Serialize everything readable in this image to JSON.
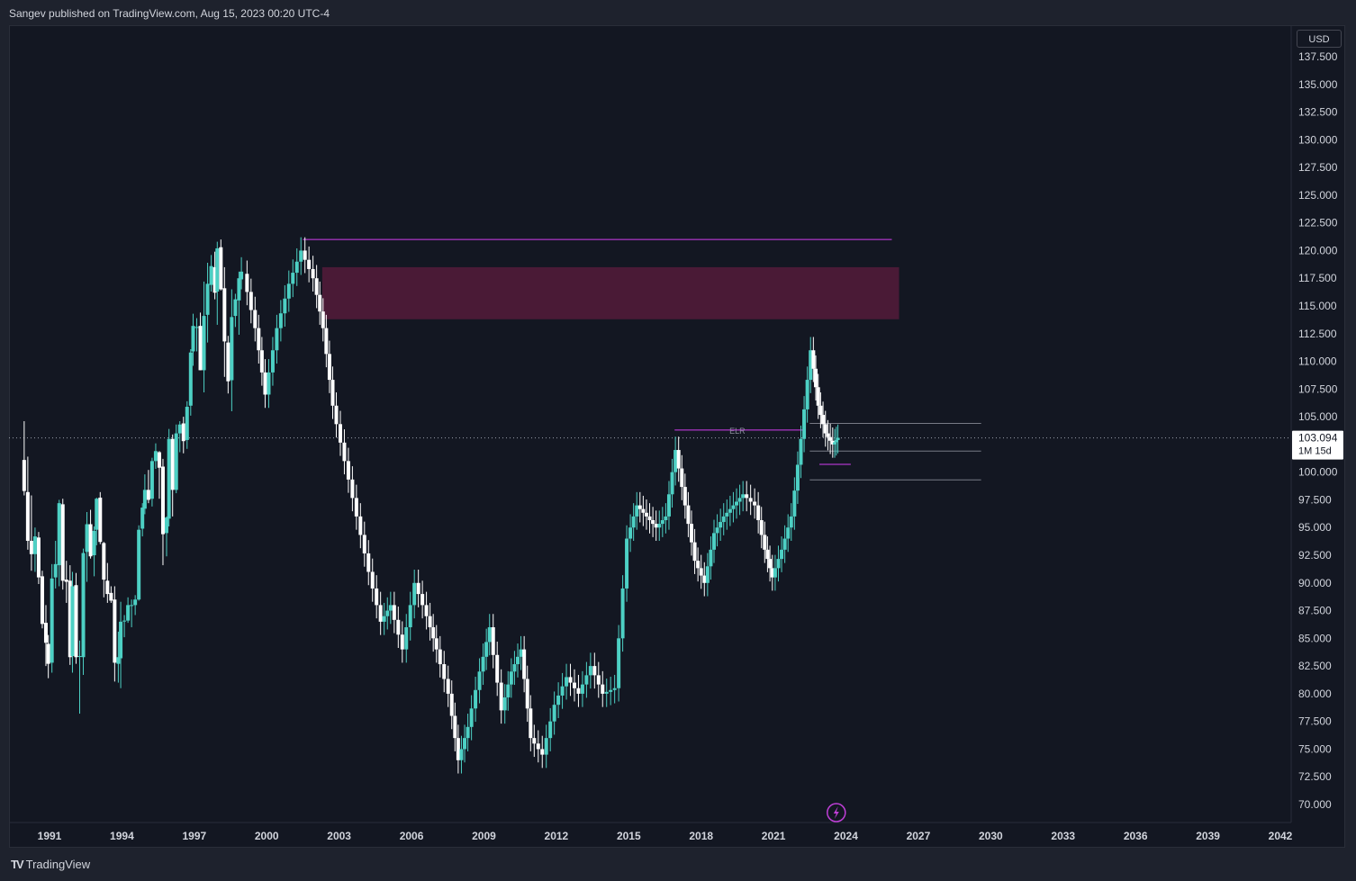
{
  "header": {
    "publisher": "Sangev published on TradingView.com, Aug 15, 2023 00:20 UTC-4"
  },
  "footer": {
    "brand": "TradingView",
    "logo_icon": "tradingview-logo-icon"
  },
  "currency_button": "USD",
  "colors": {
    "up": "#4dd0c4",
    "down": "#ffffff",
    "zone": "#4a1a36",
    "level": "#d23ef0",
    "grid_bg": "#131722"
  },
  "chart_data": {
    "type": "candlestick",
    "interval": "1M 15d",
    "last_price": "103.094",
    "ylim": [
      69.0,
      139.0
    ],
    "y_ticks": [
      "137.500",
      "135.000",
      "132.500",
      "130.000",
      "127.500",
      "125.000",
      "122.500",
      "120.000",
      "117.500",
      "115.000",
      "112.500",
      "110.000",
      "107.500",
      "105.000",
      "100.000",
      "97.500",
      "95.000",
      "92.500",
      "90.000",
      "87.500",
      "85.000",
      "82.500",
      "80.000",
      "77.500",
      "75.000",
      "72.500",
      "70.000"
    ],
    "x_ticks": [
      "1991",
      "1994",
      "1997",
      "2000",
      "2003",
      "2006",
      "2009",
      "2012",
      "2015",
      "2018",
      "2021",
      "2024",
      "2027",
      "2030",
      "2033",
      "2036",
      "2039",
      "2042"
    ],
    "candles": [
      [
        1989.95,
        101.1,
        98.3,
        104.6,
        97.9
      ],
      [
        1990.1,
        98.2,
        93.8,
        101.4,
        93.0
      ],
      [
        1990.25,
        93.8,
        92.6,
        97.9,
        91.1
      ],
      [
        1990.4,
        92.6,
        94.2,
        95.0,
        91.0
      ],
      [
        1990.55,
        94.1,
        90.5,
        94.6,
        89.9
      ],
      [
        1990.7,
        90.6,
        86.3,
        91.1,
        85.9
      ],
      [
        1990.85,
        86.4,
        84.6,
        88.0,
        82.5
      ],
      [
        1990.95,
        84.5,
        82.7,
        85.3,
        81.4
      ],
      [
        1991.1,
        82.8,
        90.4,
        91.7,
        81.9
      ],
      [
        1991.25,
        90.5,
        91.7,
        93.8,
        89.5
      ],
      [
        1991.4,
        91.6,
        97.2,
        97.5,
        89.7
      ],
      [
        1991.55,
        97.1,
        90.2,
        97.6,
        89.4
      ],
      [
        1991.7,
        90.3,
        90.1,
        92.0,
        88.2
      ],
      [
        1991.85,
        90.2,
        83.3,
        91.6,
        82.6
      ],
      [
        1991.95,
        83.4,
        89.7,
        91.0,
        81.9
      ],
      [
        1992.1,
        89.8,
        83.3,
        90.9,
        82.7
      ],
      [
        1992.25,
        83.4,
        83.4,
        84.8,
        78.2
      ],
      [
        1992.4,
        83.3,
        92.7,
        93.1,
        81.7
      ],
      [
        1992.55,
        92.8,
        95.3,
        96.4,
        90.1
      ],
      [
        1992.7,
        95.3,
        92.4,
        96.6,
        92.2
      ],
      [
        1992.85,
        92.5,
        94.7,
        95.1,
        90.6
      ],
      [
        1992.95,
        94.8,
        97.6,
        97.7,
        93.4
      ],
      [
        1993.1,
        97.7,
        93.7,
        98.2,
        93.5
      ],
      [
        1993.25,
        93.6,
        90.3,
        93.7,
        88.7
      ],
      [
        1993.4,
        90.2,
        89.0,
        91.8,
        88.2
      ],
      [
        1993.55,
        89.1,
        88.4,
        89.7,
        88.2
      ],
      [
        1993.7,
        88.5,
        82.8,
        89.7,
        81.1
      ],
      [
        1993.85,
        82.7,
        83.3,
        85.6,
        81.0
      ],
      [
        1993.95,
        83.2,
        86.5,
        88.3,
        80.5
      ],
      [
        1994.1,
        86.6,
        86.6,
        87.1,
        85.1
      ],
      [
        1994.25,
        86.6,
        88.0,
        88.7,
        86.4
      ],
      [
        1994.4,
        88.0,
        88.0,
        88.5,
        86.0
      ],
      [
        1994.55,
        88.0,
        88.5,
        88.9,
        87.1
      ],
      [
        1994.7,
        88.5,
        94.8,
        95.2,
        88.4
      ],
      [
        1994.85,
        94.9,
        96.8,
        97.2,
        94.2
      ],
      [
        1994.95,
        96.7,
        98.4,
        99.8,
        96.2
      ],
      [
        1995.1,
        98.4,
        97.5,
        100.2,
        97.2
      ],
      [
        1995.25,
        97.6,
        101.0,
        101.3,
        96.9
      ],
      [
        1995.4,
        101.0,
        101.9,
        102.6,
        100.3
      ],
      [
        1995.55,
        101.8,
        100.4,
        101.9,
        97.6
      ],
      [
        1995.7,
        100.5,
        94.4,
        101.2,
        91.6
      ],
      [
        1995.85,
        94.5,
        95.9,
        96.0,
        92.4
      ],
      [
        1995.95,
        95.8,
        103.0,
        103.9,
        95.1
      ],
      [
        1996.1,
        103.0,
        98.4,
        103.4,
        96.0
      ],
      [
        1996.25,
        98.4,
        103.5,
        104.3,
        98.1
      ],
      [
        1996.4,
        103.5,
        104.3,
        104.6,
        101.8
      ],
      [
        1996.55,
        104.4,
        102.8,
        105.0,
        101.7
      ],
      [
        1996.7,
        102.9,
        105.9,
        106.4,
        102.1
      ],
      [
        1996.85,
        106.0,
        110.8,
        111.1,
        105.1
      ],
      [
        1996.95,
        110.9,
        113.2,
        114.3,
        109.6
      ],
      [
        1997.1,
        113.1,
        113.1,
        113.9,
        110.9
      ],
      [
        1997.25,
        113.2,
        109.2,
        114.4,
        109.2
      ],
      [
        1997.4,
        109.2,
        114.1,
        117.2,
        107.2
      ],
      [
        1997.55,
        114.2,
        117.0,
        118.9,
        111.7
      ],
      [
        1997.7,
        116.9,
        118.6,
        119.6,
        116.3
      ],
      [
        1997.85,
        118.5,
        116.2,
        119.9,
        115.6
      ],
      [
        1997.95,
        116.3,
        120.2,
        120.8,
        113.3
      ],
      [
        1998.1,
        120.3,
        116.5,
        121.0,
        116.4
      ],
      [
        1998.25,
        116.6,
        111.8,
        118.5,
        108.6
      ],
      [
        1998.4,
        111.7,
        108.2,
        112.3,
        107.1
      ],
      [
        1998.55,
        108.3,
        114.0,
        116.5,
        105.5
      ],
      [
        1998.7,
        114.1,
        115.6,
        116.1,
        113.1
      ],
      [
        1998.85,
        115.5,
        117.5,
        118.1,
        112.4
      ],
      [
        1998.95,
        117.4,
        118.1,
        119.4,
        116.5
      ]
    ],
    "levels": [
      {
        "name": "ELR",
        "price": 103.8
      }
    ],
    "zone": {
      "from": 2002.3,
      "to": 2026.2,
      "low": 113.8,
      "high": 118.5
    }
  }
}
